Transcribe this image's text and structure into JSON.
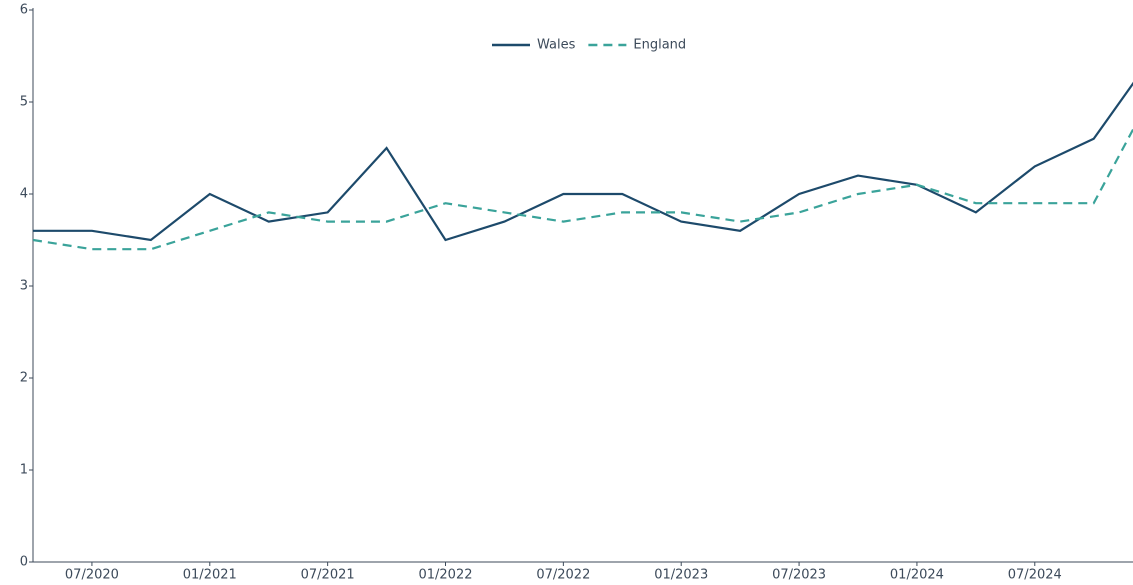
{
  "chart_data": {
    "type": "line",
    "x": [
      "2020-04",
      "2020-07",
      "2020-10",
      "2021-01",
      "2021-04",
      "2021-07",
      "2021-10",
      "2022-01",
      "2022-04",
      "2022-07",
      "2022-10",
      "2023-01",
      "2023-04",
      "2023-07",
      "2023-10",
      "2024-01",
      "2024-04",
      "2024-07",
      "2024-10",
      "2025-01"
    ],
    "series": [
      {
        "name": "Wales",
        "color": "#1d4a6b",
        "dash": "solid",
        "values": [
          3.6,
          3.6,
          3.5,
          4.0,
          3.7,
          3.8,
          4.5,
          3.5,
          3.7,
          4.0,
          4.0,
          3.7,
          3.6,
          4.0,
          4.2,
          4.1,
          3.8,
          4.3,
          4.6,
          5.5
        ]
      },
      {
        "name": "England",
        "color": "#3aa39a",
        "dash": "dashed",
        "values": [
          3.5,
          3.4,
          3.4,
          3.6,
          3.8,
          3.7,
          3.7,
          3.9,
          3.8,
          3.7,
          3.8,
          3.8,
          3.7,
          3.8,
          4.0,
          4.1,
          3.9,
          3.9,
          3.9,
          5.1
        ]
      }
    ],
    "xlim": [
      "2020-04",
      "2024-12"
    ],
    "xticks": [
      {
        "value": "2020-07",
        "label": "07/2020"
      },
      {
        "value": "2021-01",
        "label": "01/2021"
      },
      {
        "value": "2021-07",
        "label": "07/2021"
      },
      {
        "value": "2022-01",
        "label": "01/2022"
      },
      {
        "value": "2022-07",
        "label": "07/2022"
      },
      {
        "value": "2023-01",
        "label": "01/2023"
      },
      {
        "value": "2023-07",
        "label": "07/2023"
      },
      {
        "value": "2024-01",
        "label": "01/2024"
      },
      {
        "value": "2024-07",
        "label": "07/2024"
      }
    ],
    "ylim": [
      0,
      6
    ],
    "yticks": [
      0,
      1,
      2,
      3,
      4,
      5,
      6
    ],
    "legend": "top"
  }
}
